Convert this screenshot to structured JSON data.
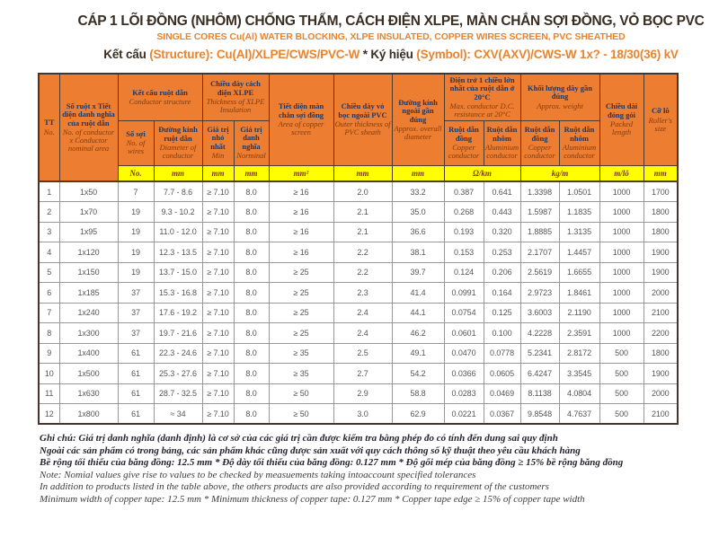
{
  "colors": {
    "header_orange": "#ED7D31",
    "units_yellow": "#FFFF00",
    "header_text_navy": "#1F3864",
    "header_text_brown": "#843C0C",
    "title_orange": "#E8842F",
    "title_dark": "#3A2D22"
  },
  "header": {
    "title_vi": "CÁP 1 LÕI ĐỒNG (NHÔM) CHỐNG THẤM, CÁCH ĐIỆN XLPE, MÀN CHẮN SỢI ĐỒNG,  VỎ BỌC PVC",
    "title_en": "SINGLE CORES Cu(Al) WATER BLOCKING, XLPE INSULATED, COPPER WIRES SCREEN,  PVC SHEATHED",
    "structure_label": "Kết cấu",
    "structure_value": "(Structure): Cu(Al)/XLPE/CWS/PVC-W",
    "separator": "*",
    "symbol_label": "Ký hiệu",
    "symbol_value": "(Symbol): CXV(AXV)/CWS-W 1x? - 18/30(36) kV"
  },
  "table": {
    "columns": {
      "tt": {
        "vi": "TT",
        "en": "No."
      },
      "area": {
        "vi": "Số ruột x Tiết diện danh nghĩa của ruột dẫn",
        "en": "No. of conductor x Conductor nominal area"
      },
      "structure": {
        "vi": "Kết cấu ruột dẫn",
        "en": "Conductor structure"
      },
      "wires": {
        "vi": "Số sợi",
        "en": "No. of wires"
      },
      "diameter": {
        "vi": "Đường kính ruột dẫn",
        "en": "Diameter of conductor"
      },
      "insulation": {
        "vi": "Chiều dày cách điện XLPE",
        "en": "Thickness of XLPE Insulation"
      },
      "min": {
        "vi": "Giá trị nhỏ nhất",
        "en": "Min"
      },
      "nominal": {
        "vi": "Giá trị danh nghĩa",
        "en": "Norminal"
      },
      "screen": {
        "vi": "Tiết diện màn chắn sợi đồng",
        "en": "Area of copper screen"
      },
      "pvc": {
        "vi": "Chiều dày vỏ bọc ngoài PVC",
        "en": "Outer thickness of PVC sheath"
      },
      "overall": {
        "vi": "Đường kính ngoài gần đúng",
        "en": "Approx. overall diameter"
      },
      "resistance": {
        "vi": "Điện trở 1 chiều lớn nhất của ruột dẫn ở 20°C",
        "en": "Max. conductor D.C. resistance at 20°C"
      },
      "res_cu": {
        "vi": "Ruột dẫn đồng",
        "en": "Copper conductor"
      },
      "res_al": {
        "vi": "Ruột dẫn nhôm",
        "en": "Aluminium conductor"
      },
      "weight": {
        "vi": "Khối lượng dây gần đúng",
        "en": "Approx. weight"
      },
      "wt_cu": {
        "vi": "Ruột dẫn đồng",
        "en": "Copper conductor"
      },
      "wt_al": {
        "vi": "Ruột dẫn nhôm",
        "en": "Aluminium conductor"
      },
      "packed": {
        "vi": "Chiều dài đóng gói",
        "en": "Packed length"
      },
      "roller": {
        "vi": "Cỡ lô",
        "en": "Roller's size"
      }
    },
    "units": [
      "No.",
      "mm",
      "mm",
      "mm",
      "mm²",
      "mm",
      "mm",
      "Ω/km",
      "kg/m",
      "m/lô",
      "mm"
    ],
    "rows": [
      [
        "1",
        "1x50",
        "7",
        "7.7 - 8.6",
        "≥ 7.10",
        "8.0",
        "≥ 16",
        "2.0",
        "33.2",
        "0.387",
        "0.641",
        "1.3398",
        "1.0501",
        "1000",
        "1700"
      ],
      [
        "2",
        "1x70",
        "19",
        "9.3 - 10.2",
        "≥ 7.10",
        "8.0",
        "≥ 16",
        "2.1",
        "35.0",
        "0.268",
        "0.443",
        "1.5987",
        "1.1835",
        "1000",
        "1800"
      ],
      [
        "3",
        "1x95",
        "19",
        "11.0 - 12.0",
        "≥ 7.10",
        "8.0",
        "≥ 16",
        "2.1",
        "36.6",
        "0.193",
        "0.320",
        "1.8885",
        "1.3135",
        "1000",
        "1800"
      ],
      [
        "4",
        "1x120",
        "19",
        "12.3 - 13.5",
        "≥ 7.10",
        "8.0",
        "≥ 16",
        "2.2",
        "38.1",
        "0.153",
        "0.253",
        "2.1707",
        "1.4457",
        "1000",
        "1900"
      ],
      [
        "5",
        "1x150",
        "19",
        "13.7 - 15.0",
        "≥ 7.10",
        "8.0",
        "≥ 25",
        "2.2",
        "39.7",
        "0.124",
        "0.206",
        "2.5619",
        "1.6655",
        "1000",
        "1900"
      ],
      [
        "6",
        "1x185",
        "37",
        "15.3 - 16.8",
        "≥ 7.10",
        "8.0",
        "≥ 25",
        "2.3",
        "41.4",
        "0.0991",
        "0.164",
        "2.9723",
        "1.8461",
        "1000",
        "2000"
      ],
      [
        "7",
        "1x240",
        "37",
        "17.6 - 19.2",
        "≥ 7.10",
        "8.0",
        "≥ 25",
        "2.4",
        "44.1",
        "0.0754",
        "0.125",
        "3.6003",
        "2.1190",
        "1000",
        "2100"
      ],
      [
        "8",
        "1x300",
        "37",
        "19.7 - 21.6",
        "≥ 7.10",
        "8.0",
        "≥ 25",
        "2.4",
        "46.2",
        "0.0601",
        "0.100",
        "4.2228",
        "2.3591",
        "1000",
        "2200"
      ],
      [
        "9",
        "1x400",
        "61",
        "22.3 - 24.6",
        "≥ 7.10",
        "8.0",
        "≥ 35",
        "2.5",
        "49.1",
        "0.0470",
        "0.0778",
        "5.2341",
        "2.8172",
        "500",
        "1800"
      ],
      [
        "10",
        "1x500",
        "61",
        "25.3 - 27.6",
        "≥ 7.10",
        "8.0",
        "≥ 35",
        "2.7",
        "54.2",
        "0.0366",
        "0.0605",
        "6.4247",
        "3.3545",
        "500",
        "1900"
      ],
      [
        "11",
        "1x630",
        "61",
        "28.7 - 32.5",
        "≥ 7.10",
        "8.0",
        "≥ 50",
        "2.9",
        "58.8",
        "0.0283",
        "0.0469",
        "8.1138",
        "4.0804",
        "500",
        "2000"
      ],
      [
        "12",
        "1x800",
        "61",
        "≈ 34",
        "≥ 7.10",
        "8.0",
        "≥ 50",
        "3.0",
        "62.9",
        "0.0221",
        "0.0367",
        "9.8548",
        "4.7637",
        "500",
        "2100"
      ]
    ]
  },
  "notes": {
    "vi": [
      "Ghi chú: Giá trị danh nghĩa (danh định) là cơ sở của các giá trị cần được kiểm tra bằng phép đo có tính đến dung sai quy định",
      "Ngoài các sản phẩm có trong bảng, các sản phẩm khác cũng được sản xuất với quy cách thông số kỹ thuật theo yêu cầu khách hàng",
      "Bề rộng tối thiểu của băng đồng: 12.5 mm * Độ dày tối thiểu của băng đồng: 0.127 mm * Độ gối mép của băng đồng ≥ 15% bề rộng băng đồng"
    ],
    "en": [
      "Note: Nomial values give rise to values to be checked by measuements taking intoaccount specified tolerances",
      "In addition to products listed in the table above, the others products are also provided according to requirement of the customers",
      "Minimum width of copper tape: 12.5 mm * Minimum thickness of copper tape: 0.127 mm * Copper tape edge ≥ 15% of copper tape width"
    ]
  }
}
